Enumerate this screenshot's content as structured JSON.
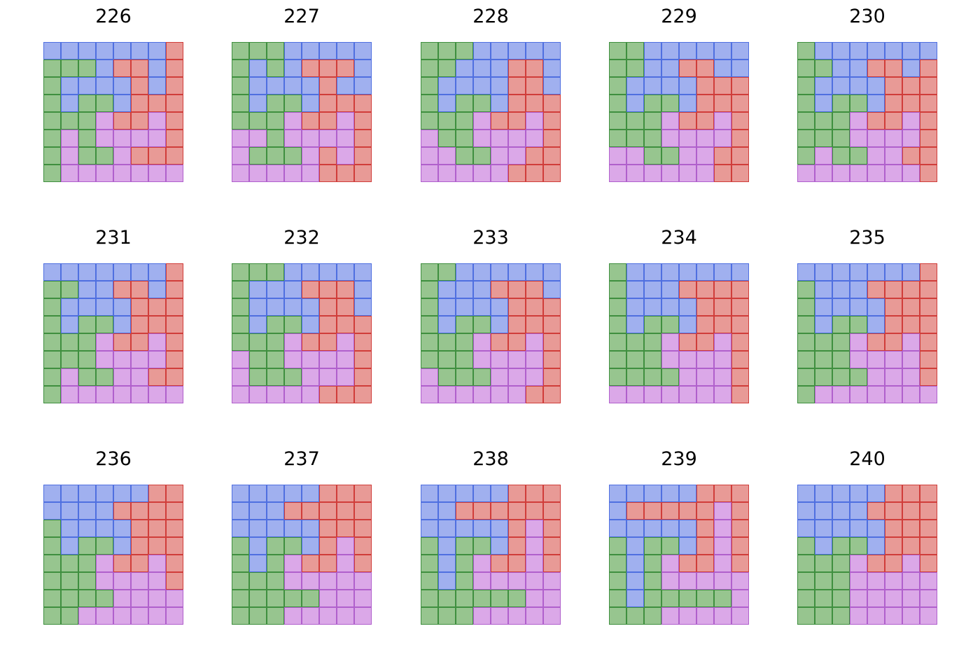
{
  "colors": {
    "B": {
      "fill": "#a0b0ef",
      "stroke": "#4f6fe0"
    },
    "G": {
      "fill": "#97c58f",
      "stroke": "#3f8f3f"
    },
    "R": {
      "fill": "#e89a96",
      "stroke": "#d03d3a"
    },
    "P": {
      "fill": "#dba8e8",
      "stroke": "#b060cc"
    }
  },
  "panels": [
    {
      "title": "226",
      "grid": [
        "BBBBBBBR",
        "GGGBRRBR",
        "GBBBBRBR",
        "GBGGBRRR",
        "GGGPRRPR",
        "GPGPPPPR",
        "GPGGPRRR",
        "GPPPPPPP"
      ]
    },
    {
      "title": "227",
      "grid": [
        "GGGBBBBB",
        "GBGBRRRB",
        "GBBBBRBB",
        "GBGGBRRR",
        "GGGPRRPR",
        "PPGPPPPR",
        "PGGGPRPR",
        "PPPPPRRR"
      ]
    },
    {
      "title": "228",
      "grid": [
        "GGGBBBBB",
        "GGBBBRRB",
        "GBBBBRRB",
        "GBGGBRRR",
        "GGGPRRPR",
        "PGGPPPPR",
        "PPGGPPRR",
        "PPPPPRRR"
      ]
    },
    {
      "title": "229",
      "grid": [
        "GGBBBBBB",
        "GGBBRRBB",
        "GBBBBRRR",
        "GBGGBRRR",
        "GGGPRRPR",
        "GGGPPPPR",
        "PPGGPPRR",
        "PPPPPPRR"
      ]
    },
    {
      "title": "230",
      "grid": [
        "GBBBBBBB",
        "GGBBRRBR",
        "GBBBBRRR",
        "GBGGBRRR",
        "GGGPRRPR",
        "GGGPPPPR",
        "GPGGPPRR",
        "PPPPPPPR"
      ]
    },
    {
      "title": "231",
      "grid": [
        "BBBBBBBR",
        "GGBBRRBR",
        "GBBBBRRR",
        "GBGGBRRR",
        "GGGPRRPR",
        "GGGPPPPR",
        "GPGGPPRR",
        "GPPPPPPP"
      ]
    },
    {
      "title": "232",
      "grid": [
        "GGGBBBBB",
        "GBBBRRRB",
        "GBBBBRRB",
        "GBGGBRRR",
        "GGGPRRPR",
        "PGGPPPPR",
        "PGGGPPPR",
        "PPPPPRRR"
      ]
    },
    {
      "title": "233",
      "grid": [
        "GGBBBBBB",
        "GBBBRRRB",
        "GBBBBRRR",
        "GBGGBRRR",
        "GGGPRRPR",
        "GGGPPPPR",
        "PGGGPPPR",
        "PPPPPPRR"
      ]
    },
    {
      "title": "234",
      "grid": [
        "GBBBBBBB",
        "GBBBRRRR",
        "GBBBBRRR",
        "GBGGBRRR",
        "GGGPRRPR",
        "GGGPPPPR",
        "GGGGPPPR",
        "PPPPPPPR"
      ]
    },
    {
      "title": "235",
      "grid": [
        "BBBBBBBR",
        "GBBBRRRR",
        "GBBBBRRR",
        "GBGGBRRR",
        "GGGPRRPR",
        "GGGPPPPR",
        "GGGGPPPR",
        "GPPPPPPP"
      ]
    },
    {
      "title": "236",
      "grid": [
        "BBBBBBRR",
        "BBBBRRRR",
        "GBBBBRRR",
        "GBGGBRRR",
        "GGGPRRPR",
        "GGGPPPPR",
        "GGGGPPPP",
        "GGPPPPPP"
      ]
    },
    {
      "title": "237",
      "grid": [
        "BBBBBRRR",
        "BBBRRRRR",
        "BBBBBRRR",
        "GBGGBRPR",
        "GBGPRRPR",
        "GGGPPPPP",
        "GGGGGPPP",
        "GGGPPPPP"
      ]
    },
    {
      "title": "238",
      "grid": [
        "BBBBBRRR",
        "BBRRRRRR",
        "BBBBBRPR",
        "GBGGBRPR",
        "GBGPRRPR",
        "GBGPPPPP",
        "GGGGGGPP",
        "GGGPPPPP"
      ]
    },
    {
      "title": "239",
      "grid": [
        "BBBBBRRR",
        "BRRRRRPR",
        "BBBBBRPR",
        "GBGGBRPR",
        "GBGPRRPR",
        "GBGPPPPP",
        "GBGGGGGP",
        "GGGPPPPP"
      ]
    },
    {
      "title": "240",
      "grid": [
        "BBBBBRRR",
        "BBBBRRRR",
        "BBBBBRRR",
        "GBGGBRRR",
        "GGGPRRPR",
        "GGGPPPPP",
        "GGGPPPPP",
        "GGGPPPPP"
      ]
    }
  ]
}
